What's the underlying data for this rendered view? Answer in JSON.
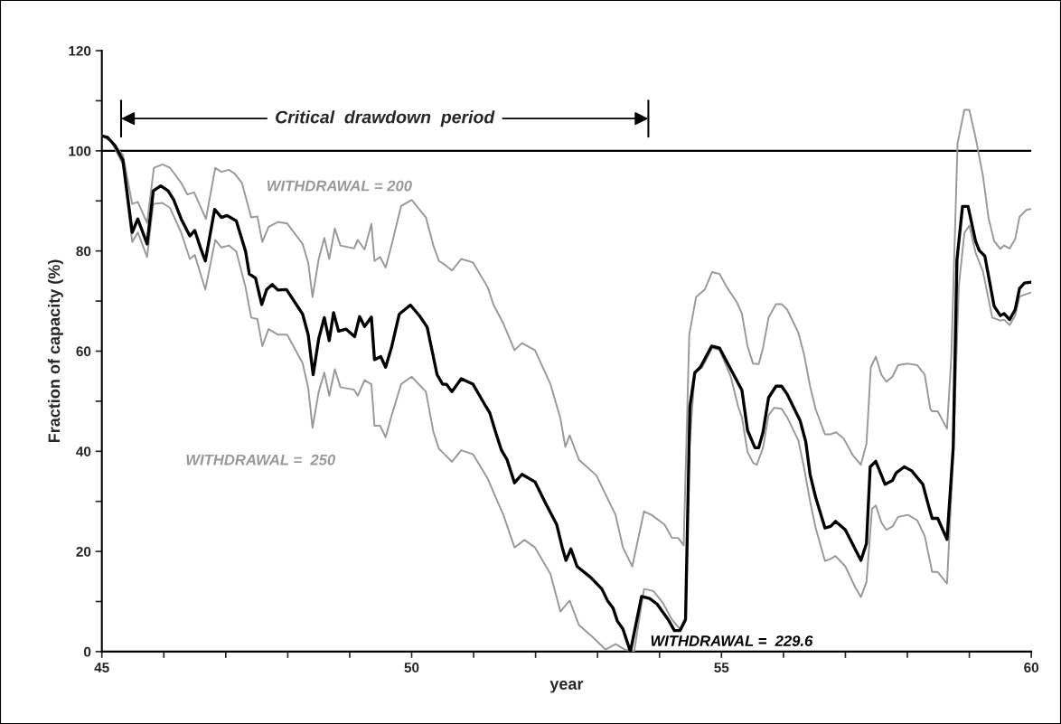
{
  "chart_data": {
    "type": "line",
    "xlabel": "year",
    "ylabel": "Fraction of capacity (%)",
    "xlim": [
      45,
      60
    ],
    "xticks": [
      45,
      {
        "value": 46,
        "label": null
      },
      {
        "value": 47,
        "label": null
      },
      {
        "value": 48,
        "label": null
      },
      {
        "value": 49,
        "label": null
      },
      50,
      {
        "value": 51,
        "label": null
      },
      {
        "value": 52,
        "label": null
      },
      {
        "value": 53,
        "label": null
      },
      {
        "value": 54,
        "label": null
      },
      55,
      {
        "value": 56,
        "label": null
      },
      {
        "value": 57,
        "label": null
      },
      {
        "value": 58,
        "label": null
      },
      {
        "value": 59,
        "label": null
      },
      60
    ],
    "ylim": [
      0,
      120
    ],
    "yticks": [
      0,
      {
        "value": 10,
        "label": null
      },
      20,
      {
        "value": 30,
        "label": null
      },
      40,
      {
        "value": 50,
        "label": null
      },
      60,
      {
        "value": 70,
        "label": null
      },
      80,
      {
        "value": 90,
        "label": null
      },
      100,
      {
        "value": 110,
        "label": null
      },
      120
    ],
    "grid": false,
    "legend": false,
    "marker": "none",
    "line_style": "solid",
    "ref_lines": [
      {
        "axis": "y",
        "value": 100,
        "label": null,
        "color": "#000000"
      }
    ],
    "annotations": [
      "Critical  drawdown  period"
    ],
    "series": [
      {
        "name": "WITHDRAWAL = 200",
        "color": "#999999",
        "x": [
          45.0,
          45.15,
          45.34,
          45.49,
          45.58,
          45.73,
          45.84,
          45.98,
          46.1,
          46.28,
          46.38,
          46.49,
          46.68,
          46.83,
          46.93,
          47.05,
          47.14,
          47.26,
          47.41,
          47.51,
          47.59,
          47.69,
          47.84,
          47.99,
          48.24,
          48.33,
          48.4,
          48.5,
          48.59,
          48.67,
          48.76,
          48.85,
          49.07,
          49.13,
          49.24,
          49.35,
          49.4,
          49.49,
          49.58,
          49.68,
          49.83,
          50.0,
          50.23,
          50.35,
          50.44,
          50.53,
          50.65,
          50.8,
          50.99,
          51.23,
          51.32,
          51.48,
          51.66,
          51.78,
          51.99,
          52.24,
          52.4,
          52.48,
          52.55,
          52.7,
          52.98,
          53.29,
          53.41,
          53.56,
          53.75,
          53.87,
          54.08,
          54.2,
          54.3,
          54.39,
          54.48,
          54.59,
          54.73,
          54.85,
          54.97,
          55.09,
          55.25,
          55.33,
          55.42,
          55.51,
          55.6,
          55.67,
          55.76,
          55.88,
          55.97,
          56.06,
          56.24,
          56.33,
          56.43,
          56.52,
          56.67,
          56.76,
          56.85,
          56.97,
          57.12,
          57.25,
          57.34,
          57.41,
          57.49,
          57.58,
          57.66,
          57.76,
          57.85,
          58.01,
          58.16,
          58.28,
          58.37,
          58.4,
          58.49,
          58.64,
          58.71,
          58.81,
          58.92,
          59.0,
          59.1,
          59.22,
          59.31,
          59.4,
          59.5,
          59.56,
          59.65,
          59.74,
          59.81,
          59.92,
          60.0
        ],
        "values": [
          103.0,
          101.9,
          99.2,
          89.4,
          89.8,
          85.6,
          96.6,
          97.3,
          96.6,
          93.6,
          91.3,
          91.7,
          86.4,
          96.6,
          95.8,
          96.2,
          95.5,
          93.6,
          86.7,
          86.9,
          81.8,
          84.8,
          85.8,
          85.5,
          81.4,
          77.7,
          70.8,
          78.4,
          82.6,
          78.4,
          84.5,
          81.1,
          80.5,
          82.2,
          80.3,
          85.4,
          78.0,
          78.8,
          76.7,
          81.4,
          89.0,
          90.2,
          86.7,
          81.1,
          78.0,
          77.3,
          76.1,
          78.4,
          77.7,
          72.7,
          69.3,
          65.5,
          60.2,
          61.6,
          60.2,
          53.4,
          46.6,
          40.9,
          43.2,
          38.3,
          35.2,
          27.3,
          20.8,
          17.0,
          28.0,
          27.3,
          25.4,
          22.7,
          22.7,
          21.2,
          63.3,
          70.8,
          72.3,
          75.8,
          75.4,
          72.7,
          69.7,
          67.5,
          61.0,
          57.5,
          57.4,
          60.6,
          66.7,
          69.4,
          69.4,
          68.3,
          63.7,
          59.5,
          53.0,
          48.4,
          43.4,
          43.4,
          43.8,
          42.6,
          39.2,
          37.3,
          41.5,
          56.8,
          58.9,
          55.3,
          53.9,
          54.9,
          57.2,
          57.5,
          57.2,
          55.3,
          48.4,
          48.0,
          48.0,
          44.5,
          59.1,
          101.5,
          108.2,
          108.2,
          102.7,
          95.0,
          86.6,
          82.0,
          80.4,
          81.1,
          80.5,
          82.4,
          86.8,
          88.2,
          88.4
        ]
      },
      {
        "name": "WITHDRAWAL =  250",
        "color": "#999999",
        "x": [
          45.0,
          45.15,
          45.34,
          45.49,
          45.58,
          45.73,
          45.83,
          45.98,
          46.1,
          46.28,
          46.42,
          46.5,
          46.67,
          46.83,
          46.93,
          47.05,
          47.17,
          47.32,
          47.41,
          47.51,
          47.59,
          47.69,
          47.84,
          47.99,
          48.24,
          48.33,
          48.4,
          48.5,
          48.59,
          48.67,
          48.76,
          48.85,
          49.07,
          49.13,
          49.24,
          49.35,
          49.4,
          49.49,
          49.58,
          49.68,
          49.83,
          50.0,
          50.23,
          50.35,
          50.44,
          50.53,
          50.65,
          50.8,
          50.99,
          51.23,
          51.36,
          51.48,
          51.66,
          51.82,
          51.99,
          52.24,
          52.4,
          52.55,
          52.7,
          52.94,
          53.13,
          53.29,
          53.44,
          53.59,
          53.75,
          53.9,
          54.05,
          54.2,
          54.33,
          54.42,
          54.48,
          54.57,
          54.69,
          54.85,
          54.97,
          55.15,
          55.27,
          55.33,
          55.42,
          55.51,
          55.57,
          55.67,
          55.76,
          55.85,
          55.97,
          56.06,
          56.24,
          56.33,
          56.43,
          56.52,
          56.67,
          56.76,
          56.84,
          57.0,
          57.16,
          57.25,
          57.34,
          57.43,
          57.49,
          57.58,
          57.66,
          57.76,
          57.85,
          58.01,
          58.16,
          58.28,
          58.4,
          58.49,
          58.64,
          58.74,
          58.83,
          58.92,
          59.0,
          59.1,
          59.22,
          59.37,
          59.5,
          59.56,
          59.65,
          59.74,
          59.81,
          59.92,
          60.0
        ],
        "values": [
          103.0,
          101.9,
          97.3,
          81.8,
          83.7,
          78.8,
          89.4,
          89.6,
          88.6,
          83.7,
          78.4,
          79.2,
          72.3,
          82.2,
          80.7,
          81.1,
          79.9,
          72.7,
          66.7,
          66.4,
          61.0,
          64.4,
          63.3,
          63.3,
          57.6,
          52.7,
          44.7,
          51.9,
          55.7,
          51.1,
          56.4,
          52.8,
          52.3,
          51.1,
          54.2,
          53.4,
          45.1,
          45.1,
          42.8,
          47.3,
          53.4,
          54.9,
          51.9,
          43.9,
          40.5,
          39.4,
          37.9,
          40.2,
          39.4,
          34.5,
          30.7,
          27.3,
          20.8,
          22.3,
          20.8,
          15.5,
          8.0,
          10.2,
          5.3,
          2.7,
          0.4,
          1.5,
          0.4,
          0,
          12.5,
          12.1,
          9.8,
          6.4,
          4.5,
          6.8,
          40.5,
          55.7,
          56.8,
          60.6,
          60.2,
          54.9,
          48.9,
          46.8,
          39.9,
          37.7,
          37.3,
          40.7,
          47.2,
          48.7,
          48.5,
          46.8,
          42.2,
          36.9,
          30.0,
          24.7,
          18.1,
          18.5,
          19.1,
          17.0,
          12.8,
          10.9,
          13.9,
          28.5,
          29.2,
          25.8,
          24.3,
          25.0,
          26.9,
          27.3,
          26.2,
          23.1,
          15.9,
          15.9,
          13.6,
          39.2,
          72.9,
          83.6,
          85.1,
          79.7,
          75.9,
          66.7,
          66.1,
          66.3,
          65.2,
          67.1,
          70.9,
          71.4,
          71.7
        ]
      },
      {
        "name": "WITHDRAWAL =  229.6",
        "color": "#000000",
        "x": [
          45.0,
          45.09,
          45.21,
          45.34,
          45.49,
          45.58,
          45.73,
          45.83,
          45.95,
          46.07,
          46.16,
          46.28,
          46.42,
          46.5,
          46.59,
          46.67,
          46.82,
          46.93,
          47.02,
          47.17,
          47.32,
          47.38,
          47.48,
          47.58,
          47.66,
          47.75,
          47.84,
          47.98,
          48.24,
          48.33,
          48.41,
          48.5,
          48.59,
          48.67,
          48.74,
          48.82,
          48.94,
          49.08,
          49.16,
          49.24,
          49.35,
          49.4,
          49.5,
          49.58,
          49.68,
          49.8,
          49.98,
          50.13,
          50.25,
          50.41,
          50.5,
          50.56,
          50.65,
          50.8,
          50.99,
          51.2,
          51.26,
          51.36,
          51.45,
          51.54,
          51.66,
          51.78,
          51.99,
          52.15,
          52.34,
          52.43,
          52.49,
          52.57,
          52.67,
          52.89,
          53.07,
          53.16,
          53.25,
          53.32,
          53.41,
          53.53,
          53.71,
          53.84,
          53.96,
          54.14,
          54.24,
          54.33,
          54.42,
          54.49,
          54.57,
          54.66,
          54.84,
          54.97,
          55.15,
          55.33,
          55.42,
          55.54,
          55.6,
          55.67,
          55.76,
          55.88,
          55.97,
          56.06,
          56.27,
          56.36,
          56.43,
          56.52,
          56.67,
          56.76,
          56.84,
          57.0,
          57.25,
          57.34,
          57.4,
          57.49,
          57.64,
          57.76,
          57.82,
          57.95,
          58.07,
          58.25,
          58.34,
          58.4,
          58.49,
          58.64,
          58.74,
          58.8,
          58.89,
          58.98,
          59.1,
          59.16,
          59.25,
          59.4,
          59.5,
          59.56,
          59.65,
          59.74,
          59.81,
          59.89,
          60.0
        ],
        "values": [
          103.0,
          102.7,
          101.1,
          98.1,
          83.7,
          86.4,
          81.4,
          92.0,
          93.0,
          92.0,
          90.2,
          86.4,
          83.0,
          84.1,
          80.7,
          78.0,
          88.3,
          86.7,
          87.1,
          86.0,
          79.9,
          75.4,
          74.6,
          69.3,
          72.3,
          73.3,
          72.2,
          72.3,
          67.4,
          63.3,
          55.3,
          62.5,
          66.7,
          62.1,
          67.7,
          64.0,
          64.4,
          62.9,
          66.9,
          64.9,
          66.8,
          58.3,
          58.9,
          56.8,
          61.0,
          67.4,
          69.2,
          67.0,
          64.8,
          55.3,
          53.4,
          53.4,
          51.9,
          54.5,
          53.4,
          48.9,
          47.7,
          43.6,
          40.2,
          38.3,
          33.7,
          35.4,
          33.9,
          29.9,
          25.4,
          20.8,
          18.2,
          20.5,
          17.0,
          14.8,
          12.5,
          10.2,
          8.7,
          6.1,
          4.5,
          0,
          11.0,
          10.6,
          9.5,
          6.4,
          4.2,
          4.2,
          6.4,
          48.9,
          55.7,
          56.8,
          61.0,
          60.6,
          56.4,
          52.2,
          44.2,
          40.7,
          40.7,
          43.8,
          50.7,
          53.0,
          53.0,
          51.4,
          46.1,
          41.9,
          35.4,
          30.8,
          24.7,
          25.0,
          26.0,
          24.3,
          18.2,
          21.6,
          36.9,
          38.0,
          33.4,
          34.2,
          35.7,
          36.9,
          36.1,
          33.4,
          29.2,
          26.6,
          26.6,
          22.4,
          40.7,
          78.2,
          88.9,
          88.9,
          82.0,
          80.1,
          79.0,
          69.0,
          67.1,
          67.5,
          66.3,
          68.3,
          72.5,
          73.6,
          73.8
        ]
      }
    ]
  }
}
